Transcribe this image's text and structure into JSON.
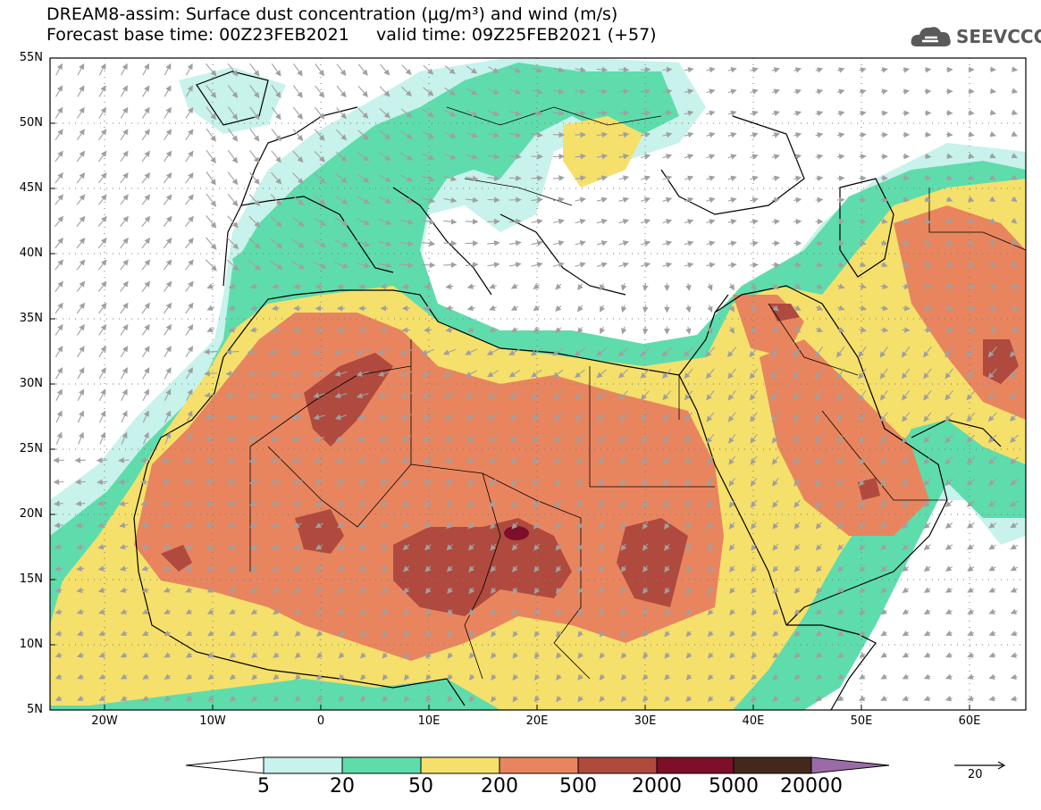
{
  "title": {
    "line1": "DREAM8-assim: Surface dust concentration (μg/m³) and wind (m/s)",
    "line2": "Forecast base time: 00Z23FEB2021     valid time: 09Z25FEB2021 (+57)"
  },
  "logo": {
    "text": "SEEVCCC",
    "icon": "cloud-icon"
  },
  "map": {
    "projection": "lat-lon",
    "extent": {
      "lon_min": -25,
      "lon_max": 65,
      "lat_min": 5,
      "lat_max": 55
    },
    "lat_labels": [
      "55N",
      "50N",
      "45N",
      "40N",
      "35N",
      "30N",
      "25N",
      "20N",
      "15N",
      "10N",
      "5N"
    ],
    "lon_labels": [
      "20W",
      "10W",
      "0",
      "10E",
      "20E",
      "30E",
      "40E",
      "50E",
      "60E"
    ],
    "gridlines": true,
    "wind_vectors": true,
    "wind_color": "#a0a0a0",
    "coastline_color": "#000000"
  },
  "colorbar": {
    "labels": [
      "5",
      "20",
      "50",
      "200",
      "500",
      "2000",
      "5000",
      "20000"
    ],
    "colors": [
      "#c8f2ec",
      "#5fdcac",
      "#f5e06b",
      "#e8855f",
      "#b04a3e",
      "#7d0f2a",
      "#45281c",
      "#9b6ba8"
    ],
    "low_color": "#ffffff"
  },
  "wind_scale": {
    "label": "20"
  }
}
